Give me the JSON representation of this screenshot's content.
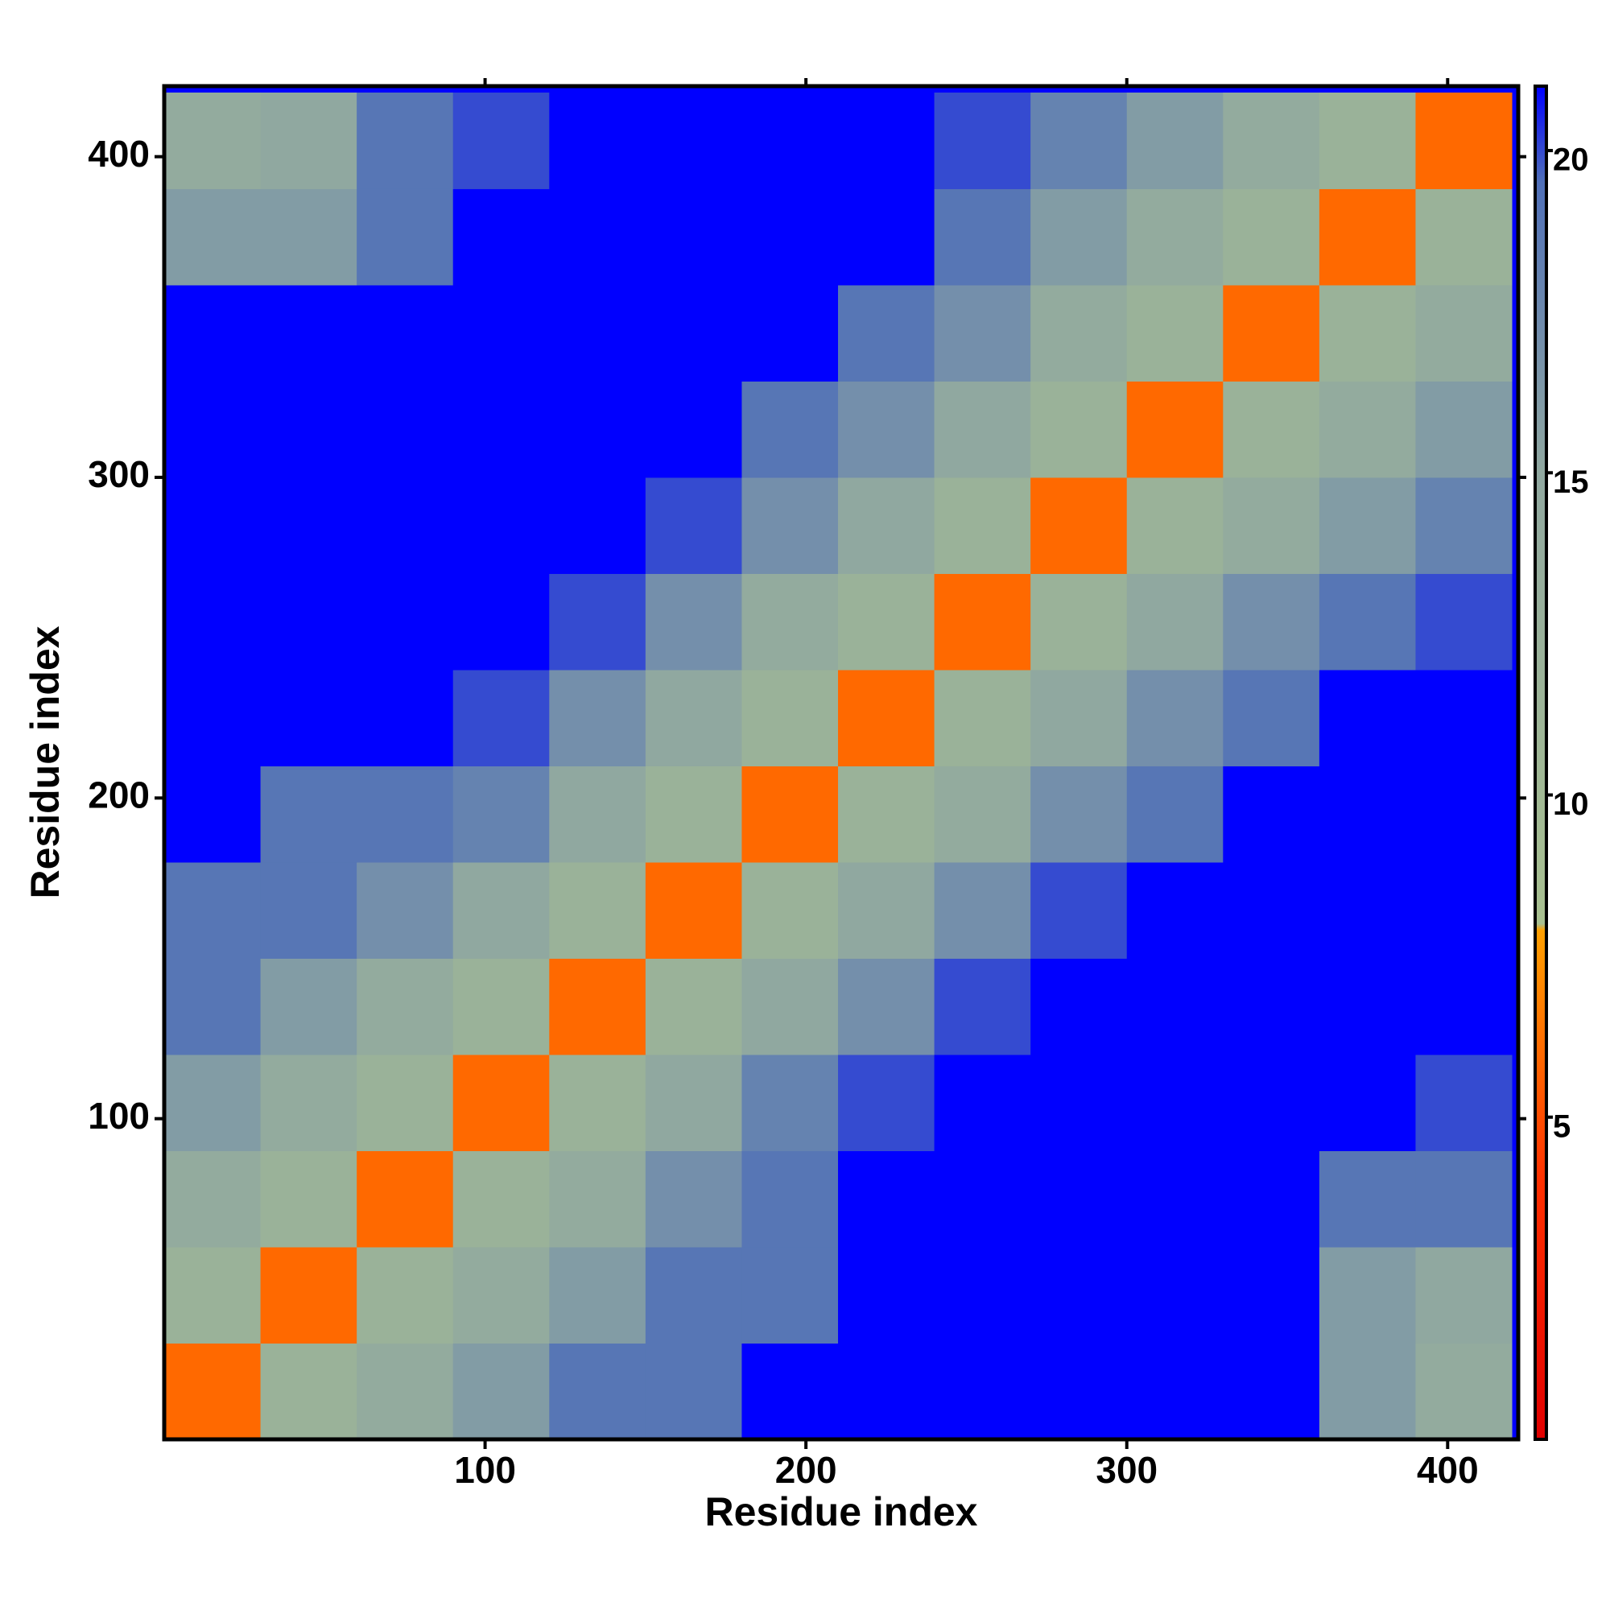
{
  "chart_data": {
    "type": "heatmap",
    "xlabel": "Residue index",
    "ylabel": "Residue index",
    "xlim": [
      0,
      422
    ],
    "ylim": [
      0,
      422
    ],
    "xticks": [
      100,
      200,
      300,
      400
    ],
    "yticks": [
      100,
      200,
      300,
      400
    ],
    "xbins": [
      0,
      30,
      60,
      90,
      120,
      150,
      180,
      210,
      240,
      270,
      300,
      330,
      360,
      390,
      420
    ],
    "ybins": [
      0,
      30,
      60,
      90,
      120,
      150,
      180,
      210,
      240,
      270,
      300,
      330,
      360,
      390,
      420
    ],
    "z": [
      [
        6,
        12,
        14,
        16,
        19,
        19,
        21,
        21,
        21,
        21,
        21,
        21,
        16,
        14
      ],
      [
        12,
        6,
        12,
        14,
        16,
        19,
        19,
        21,
        21,
        21,
        21,
        21,
        16,
        15
      ],
      [
        14,
        12,
        6,
        12,
        14,
        17,
        19,
        21,
        21,
        21,
        21,
        21,
        19,
        19
      ],
      [
        16,
        14,
        12,
        6,
        12,
        15,
        18,
        20,
        21,
        21,
        21,
        21,
        21,
        20
      ],
      [
        19,
        16,
        14,
        12,
        6,
        12,
        15,
        17,
        20,
        21,
        21,
        21,
        21,
        21
      ],
      [
        19,
        19,
        17,
        15,
        12,
        6,
        12,
        15,
        17,
        20,
        21,
        21,
        21,
        21
      ],
      [
        21,
        19,
        19,
        18,
        15,
        12,
        6,
        12,
        14,
        17,
        19,
        21,
        21,
        21
      ],
      [
        21,
        21,
        21,
        20,
        17,
        15,
        12,
        6,
        12,
        15,
        17,
        19,
        21,
        21
      ],
      [
        21,
        21,
        21,
        21,
        20,
        17,
        14,
        12,
        6,
        12,
        15,
        17,
        19,
        20
      ],
      [
        21,
        21,
        21,
        21,
        21,
        20,
        17,
        15,
        12,
        6,
        12,
        14,
        16,
        18
      ],
      [
        21,
        21,
        21,
        21,
        21,
        21,
        19,
        17,
        15,
        12,
        6,
        12,
        14,
        16
      ],
      [
        21,
        21,
        21,
        21,
        21,
        21,
        21,
        19,
        17,
        14,
        12,
        6,
        12,
        14
      ],
      [
        16,
        16,
        19,
        21,
        21,
        21,
        21,
        21,
        19,
        16,
        14,
        12,
        6,
        12
      ],
      [
        14,
        15,
        19,
        20,
        21,
        21,
        21,
        21,
        20,
        18,
        16,
        14,
        12,
        6
      ]
    ],
    "colorbar_lim": [
      0,
      21
    ],
    "colorbar_ticks": [
      5,
      10,
      15,
      20
    ],
    "background_color": "#0000ff",
    "colorscale": [
      {
        "value": 0,
        "color": "#e00000"
      },
      {
        "value": 4,
        "color": "#ff3000"
      },
      {
        "value": 7.9,
        "color": "#ffa000"
      },
      {
        "value": 8,
        "color": "#a8c090"
      },
      {
        "value": 15,
        "color": "#90a8a0"
      },
      {
        "value": 19.5,
        "color": "#5070b8"
      },
      {
        "value": 21,
        "color": "#0000ff"
      }
    ]
  }
}
